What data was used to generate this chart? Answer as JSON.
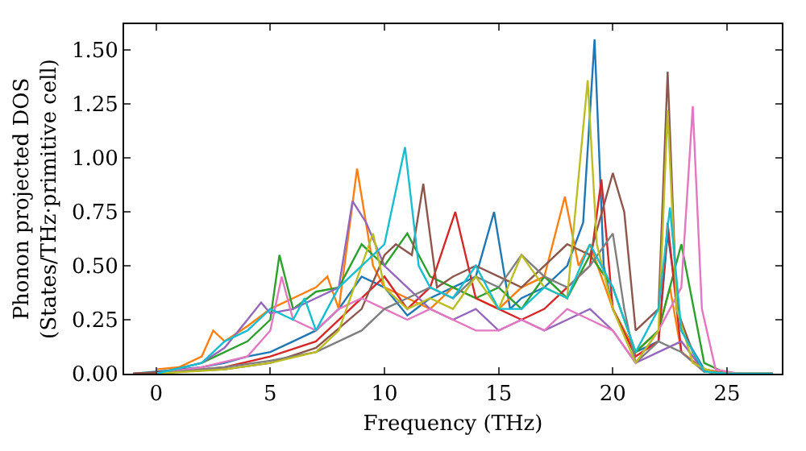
{
  "chart_data": {
    "type": "line",
    "xlabel": "Frequency (THz)",
    "ylabel": "Phonon projected DOS\n(States/THz·primitive cell)",
    "xlim": [
      -1.4,
      27.4
    ],
    "xticks": [
      0,
      5,
      10,
      15,
      20,
      25
    ],
    "ylim": [
      0,
      1.62
    ],
    "yticks": [
      {
        "value": 0,
        "label": "0.00"
      },
      0.25,
      {
        "value": 0.5,
        "label": "0.50"
      },
      0.75,
      {
        "value": 1,
        "label": "1.00"
      },
      1.25,
      {
        "value": 1.5,
        "label": "1.50"
      }
    ],
    "grid": false,
    "marker": "none",
    "line_style": "solid",
    "series": [
      {
        "color": "#1f77b4",
        "x": [
          -1,
          0,
          1,
          2,
          3,
          4,
          5,
          6,
          7,
          8,
          9,
          10,
          11,
          12,
          13,
          14,
          14.8,
          15.5,
          16,
          17,
          18,
          18.7,
          19.2,
          19.6,
          20,
          21,
          22,
          22.4,
          23,
          24,
          25,
          27
        ],
        "values": [
          0,
          0.01,
          0.02,
          0.03,
          0.05,
          0.08,
          0.1,
          0.15,
          0.2,
          0.3,
          0.45,
          0.4,
          0.27,
          0.35,
          0.4,
          0.45,
          0.75,
          0.3,
          0.35,
          0.4,
          0.5,
          0.7,
          1.55,
          0.5,
          0.3,
          0.1,
          0.15,
          0.65,
          0.2,
          0.02,
          0,
          0
        ]
      },
      {
        "color": "#ff7f0e",
        "x": [
          0,
          1,
          2,
          2.5,
          3,
          4,
          5,
          6,
          7,
          7.5,
          8,
          8.8,
          9.5,
          10,
          11,
          12,
          13,
          14,
          15,
          16,
          17,
          17.9,
          18.5,
          19,
          20,
          21,
          22,
          22.5,
          23,
          24,
          25,
          27
        ],
        "values": [
          0.02,
          0.03,
          0.08,
          0.2,
          0.15,
          0.22,
          0.3,
          0.35,
          0.4,
          0.45,
          0.3,
          0.95,
          0.5,
          0.4,
          0.35,
          0.3,
          0.4,
          0.35,
          0.3,
          0.4,
          0.45,
          0.82,
          0.5,
          0.6,
          0.3,
          0.1,
          0.2,
          0.4,
          0.1,
          0.02,
          0,
          0
        ]
      },
      {
        "color": "#2ca02c",
        "x": [
          0,
          2,
          4,
          5,
          5.4,
          6,
          7,
          8,
          9,
          10,
          11,
          12,
          13,
          14,
          15,
          16,
          17,
          18,
          19,
          20,
          21,
          22,
          23,
          24,
          25,
          27
        ],
        "values": [
          0,
          0.05,
          0.15,
          0.25,
          0.55,
          0.3,
          0.38,
          0.4,
          0.6,
          0.5,
          0.65,
          0.45,
          0.4,
          0.35,
          0.4,
          0.3,
          0.45,
          0.35,
          0.55,
          0.4,
          0.1,
          0.2,
          0.6,
          0.05,
          0,
          0
        ]
      },
      {
        "color": "#d62728",
        "x": [
          -1,
          1,
          3,
          5,
          7,
          8,
          9,
          10,
          11,
          12,
          13.1,
          14,
          15,
          16,
          17,
          18,
          19,
          19.5,
          20,
          21,
          22,
          22.4,
          23,
          24,
          25,
          27
        ],
        "values": [
          0,
          0.01,
          0.03,
          0.08,
          0.15,
          0.25,
          0.35,
          0.45,
          0.3,
          0.4,
          0.75,
          0.35,
          0.3,
          0.25,
          0.3,
          0.4,
          0.5,
          0.9,
          0.3,
          0.08,
          0.15,
          0.7,
          0.1,
          0.01,
          0,
          0
        ]
      },
      {
        "color": "#9467bd",
        "x": [
          0,
          2,
          3,
          4,
          4.6,
          5,
          6,
          7,
          8,
          8.6,
          9.2,
          10,
          11,
          12,
          13,
          14,
          15,
          16,
          17,
          18,
          19,
          20,
          21,
          22,
          23,
          24,
          25,
          27
        ],
        "values": [
          0,
          0.05,
          0.12,
          0.25,
          0.33,
          0.28,
          0.3,
          0.35,
          0.4,
          0.8,
          0.7,
          0.5,
          0.4,
          0.3,
          0.25,
          0.3,
          0.2,
          0.25,
          0.2,
          0.25,
          0.3,
          0.2,
          0.05,
          0.1,
          0.15,
          0.01,
          0,
          0
        ]
      },
      {
        "color": "#8c564b",
        "x": [
          -1,
          1,
          3,
          5,
          7,
          9,
          10,
          10.5,
          11.2,
          11.7,
          12.3,
          13,
          14,
          15,
          16,
          17,
          18,
          19,
          20,
          20.5,
          21,
          22,
          22.4,
          22.8,
          23.5,
          24,
          25,
          27
        ],
        "values": [
          0,
          0.01,
          0.02,
          0.05,
          0.12,
          0.3,
          0.55,
          0.6,
          0.55,
          0.88,
          0.4,
          0.45,
          0.5,
          0.45,
          0.4,
          0.5,
          0.6,
          0.55,
          0.93,
          0.75,
          0.2,
          0.3,
          1.4,
          0.3,
          0.1,
          0.01,
          0,
          0
        ]
      },
      {
        "color": "#e377c2",
        "x": [
          0,
          2,
          4,
          5,
          5.5,
          6,
          7,
          8,
          9,
          10,
          11,
          12,
          13,
          14,
          15,
          16,
          17,
          18,
          19,
          20,
          21,
          22,
          23,
          23.5,
          23.9,
          24.5,
          25.5,
          27
        ],
        "values": [
          0,
          0.03,
          0.08,
          0.2,
          0.45,
          0.25,
          0.2,
          0.3,
          0.35,
          0.3,
          0.25,
          0.3,
          0.25,
          0.2,
          0.2,
          0.25,
          0.2,
          0.3,
          0.25,
          0.2,
          0.05,
          0.2,
          0.4,
          1.24,
          0.3,
          0.02,
          0,
          0
        ]
      },
      {
        "color": "#7f7f7f",
        "x": [
          0,
          3,
          5,
          7,
          9,
          10,
          11,
          12,
          13,
          14,
          15,
          16,
          17,
          18,
          19,
          20,
          20.5,
          21,
          22,
          23,
          24,
          25,
          27
        ],
        "values": [
          0,
          0.03,
          0.06,
          0.1,
          0.2,
          0.3,
          0.35,
          0.4,
          0.35,
          0.45,
          0.4,
          0.55,
          0.45,
          0.4,
          0.5,
          0.65,
          0.3,
          0.05,
          0.15,
          0.1,
          0.01,
          0,
          0
        ]
      },
      {
        "color": "#bcbd22",
        "x": [
          0,
          3,
          5,
          7,
          8,
          9,
          9.5,
          10,
          11,
          12,
          13,
          14,
          15,
          16,
          17,
          18,
          18.9,
          19.3,
          20,
          21,
          22,
          22.4,
          22.8,
          23.5,
          24.5,
          27
        ],
        "values": [
          0,
          0.02,
          0.05,
          0.1,
          0.2,
          0.5,
          0.65,
          0.4,
          0.3,
          0.35,
          0.3,
          0.45,
          0.3,
          0.55,
          0.4,
          0.35,
          1.36,
          0.6,
          0.3,
          0.05,
          0.2,
          1.22,
          0.3,
          0.05,
          0,
          0
        ]
      },
      {
        "color": "#17becf",
        "x": [
          0,
          2,
          3,
          4,
          5,
          6,
          6.5,
          7,
          8,
          9,
          10,
          10.9,
          11.5,
          12,
          13,
          14,
          15,
          16,
          17,
          18,
          19,
          20,
          21,
          22,
          22.5,
          23,
          24,
          25,
          27
        ],
        "values": [
          0,
          0.05,
          0.15,
          0.2,
          0.3,
          0.25,
          0.35,
          0.2,
          0.4,
          0.5,
          0.6,
          1.05,
          0.5,
          0.4,
          0.35,
          0.5,
          0.3,
          0.3,
          0.4,
          0.35,
          0.6,
          0.4,
          0.1,
          0.3,
          0.77,
          0.2,
          0.01,
          0,
          0
        ]
      }
    ]
  }
}
